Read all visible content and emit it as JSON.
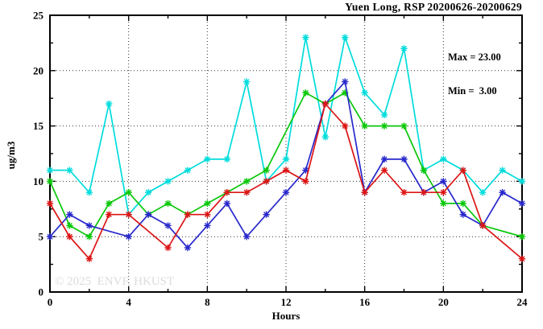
{
  "title": "Yuen Long, RSP 20200626-20200629",
  "annotation": {
    "max_label": "Max = 23.00",
    "min_label": "Min =  3.00"
  },
  "watermark": "© 2025  ENVF, HKUST",
  "chart_data": {
    "type": "line",
    "title": "Yuen Long, RSP 20200626-20200629",
    "xlabel": "Hours",
    "ylabel": "ug/m3",
    "xlim": [
      0,
      24
    ],
    "ylim": [
      0,
      25
    ],
    "xticks": [
      0,
      4,
      8,
      12,
      16,
      20,
      24
    ],
    "yticks": [
      0,
      5,
      10,
      15,
      20,
      25
    ],
    "x_minor_ticks": [
      2,
      6,
      10,
      14,
      18,
      22
    ],
    "y_minor_ticks": [
      2.5,
      7.5,
      12.5,
      17.5,
      22.5
    ],
    "grid": {
      "x_at": [
        4,
        8,
        12,
        16,
        20
      ],
      "y_at": [
        5,
        10,
        15,
        20
      ],
      "style": "dotted"
    },
    "legend": "none",
    "marker": "asterisk",
    "x": [
      0,
      1,
      2,
      3,
      4,
      5,
      6,
      7,
      8,
      9,
      10,
      11,
      12,
      13,
      14,
      15,
      16,
      17,
      18,
      19,
      20,
      21,
      22,
      23,
      24
    ],
    "series": [
      {
        "name": "cyan",
        "color": "#00DCDC",
        "values": [
          11,
          11,
          9,
          17,
          7,
          9,
          10,
          11,
          12,
          12,
          19,
          10,
          12,
          23,
          14,
          23,
          18,
          16,
          22,
          11,
          12,
          11,
          9,
          11,
          10
        ]
      },
      {
        "name": "green",
        "color": "#0AC80A",
        "values": [
          10,
          6,
          5,
          8,
          9,
          7,
          8,
          7,
          8,
          9,
          10,
          11,
          null,
          18,
          17,
          18,
          15,
          15,
          15,
          11,
          8,
          8,
          6,
          null,
          5
        ]
      },
      {
        "name": "blue",
        "color": "#2828CC",
        "values": [
          5,
          7,
          6,
          null,
          5,
          7,
          6,
          4,
          6,
          8,
          5,
          7,
          9,
          11,
          17,
          19,
          9,
          12,
          12,
          9,
          10,
          7,
          6,
          9,
          8
        ]
      },
      {
        "name": "red",
        "color": "#DC1414",
        "values": [
          8,
          5,
          3,
          7,
          7,
          null,
          4,
          7,
          7,
          9,
          9,
          10,
          11,
          10,
          17,
          15,
          9,
          11,
          9,
          9,
          9,
          11,
          6,
          null,
          3
        ]
      }
    ],
    "stats": {
      "max": 23.0,
      "min": 3.0
    }
  }
}
